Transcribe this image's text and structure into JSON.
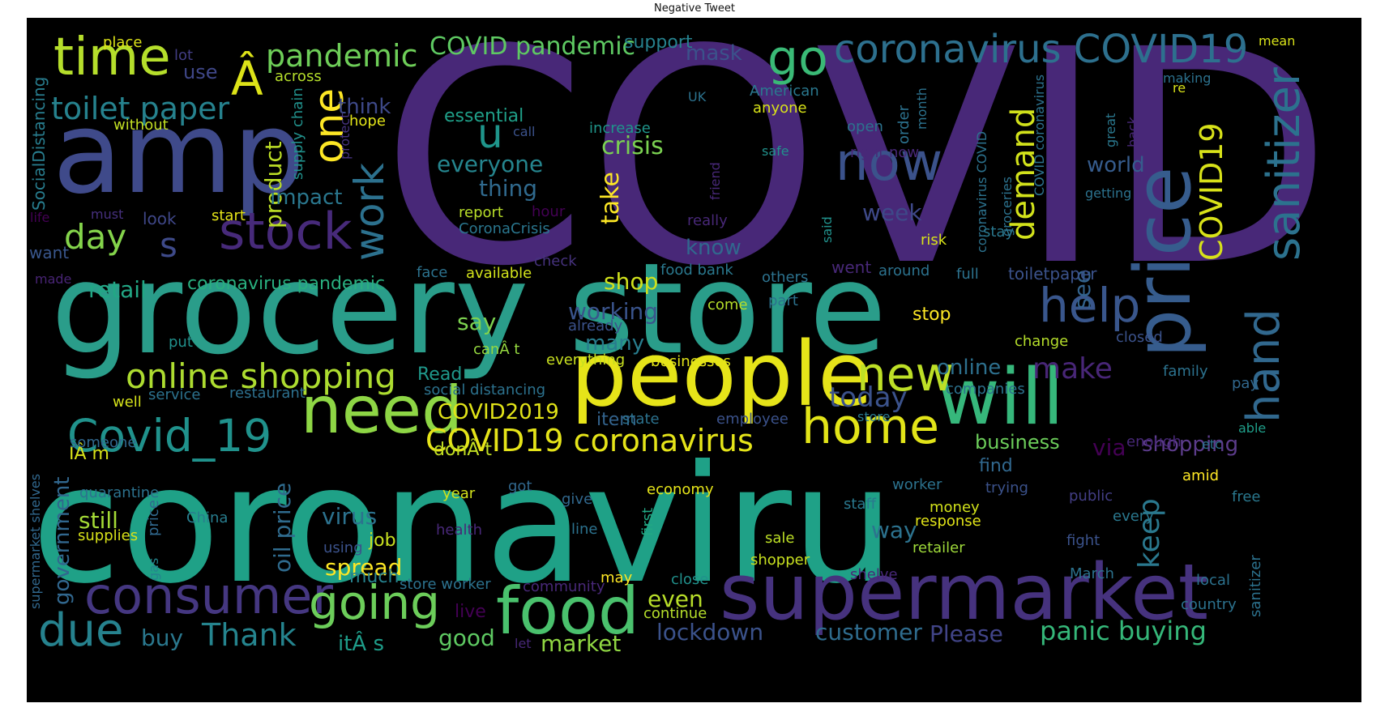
{
  "title": "Negative Tweet",
  "words": [
    {
      "text": "COVID",
      "color": "#482878"
    },
    {
      "text": "coronaviru",
      "color": "#1fa187"
    },
    {
      "text": "grocery store",
      "color": "#2a9d8a"
    },
    {
      "text": "amp",
      "color": "#3f4a8a"
    },
    {
      "text": "people",
      "color": "#e6e419"
    },
    {
      "text": "will",
      "color": "#36b77b"
    },
    {
      "text": "supermarket",
      "color": "#46327e"
    },
    {
      "text": "price",
      "color": "#365c8d"
    },
    {
      "text": "food",
      "color": "#4ac16d"
    },
    {
      "text": "need",
      "color": "#8ed645"
    },
    {
      "text": "home",
      "color": "#e2e418"
    },
    {
      "text": "consumer",
      "color": "#453781"
    },
    {
      "text": "going",
      "color": "#6ccd5a"
    },
    {
      "text": "Covid_19",
      "color": "#20928c"
    },
    {
      "text": "time",
      "color": "#b5de2b"
    },
    {
      "text": "now",
      "color": "#3b528b"
    },
    {
      "text": "stock",
      "color": "#472a7a"
    },
    {
      "text": "sanitizer",
      "color": "#2c728e"
    },
    {
      "text": "hand",
      "color": "#31688e"
    },
    {
      "text": "help",
      "color": "#39568c"
    },
    {
      "text": "new",
      "color": "#bddf26"
    },
    {
      "text": "due",
      "color": "#26828e"
    },
    {
      "text": "go",
      "color": "#3aba76"
    },
    {
      "text": "coronavirus COVID19",
      "color": "#2d708e"
    },
    {
      "text": "online shopping",
      "color": "#addc30"
    },
    {
      "text": "COVID19 coronavirus",
      "color": "#e5e419"
    },
    {
      "text": "work",
      "color": "#2c718e"
    },
    {
      "text": "u",
      "color": "#1f958b"
    },
    {
      "text": "one",
      "color": "#fde725"
    },
    {
      "text": "Â",
      "color": "#dde318"
    },
    {
      "text": "pandemic",
      "color": "#6ece58"
    },
    {
      "text": "toilet paper",
      "color": "#26828e"
    },
    {
      "text": "day",
      "color": "#84d44b"
    },
    {
      "text": "s",
      "color": "#3e4a89"
    },
    {
      "text": "today",
      "color": "#3b528b"
    },
    {
      "text": "demand",
      "color": "#d2e21b"
    },
    {
      "text": "COVID19",
      "color": "#d8e219"
    },
    {
      "text": "make",
      "color": "#482677"
    },
    {
      "text": "keep",
      "color": "#2a788e"
    },
    {
      "text": "Thank",
      "color": "#25848e"
    },
    {
      "text": "Please",
      "color": "#414487"
    },
    {
      "text": "lockdown",
      "color": "#3b528b"
    },
    {
      "text": "panic buying",
      "color": "#35b779"
    },
    {
      "text": "customer",
      "color": "#2f6c8e"
    },
    {
      "text": "COVID pandemic",
      "color": "#5ec962"
    },
    {
      "text": "crisis",
      "color": "#7ad151"
    },
    {
      "text": "everyone",
      "color": "#25858e"
    },
    {
      "text": "thing",
      "color": "#306a8e"
    },
    {
      "text": "take",
      "color": "#fde725"
    },
    {
      "text": "shop",
      "color": "#d0e11c"
    },
    {
      "text": "working",
      "color": "#3a548c"
    },
    {
      "text": "product",
      "color": "#bddf26"
    },
    {
      "text": "impact",
      "color": "#2a778e"
    },
    {
      "text": "retail",
      "color": "#22a785"
    },
    {
      "text": "coronavirus pandemic",
      "color": "#29af7f"
    },
    {
      "text": "say",
      "color": "#7cd250"
    },
    {
      "text": "many",
      "color": "#287d8e"
    },
    {
      "text": "still",
      "color": "#a5db36"
    },
    {
      "text": "virus",
      "color": "#2c728e"
    },
    {
      "text": "buy",
      "color": "#2a788e"
    },
    {
      "text": "good",
      "color": "#5ec962"
    },
    {
      "text": "market",
      "color": "#90d743"
    },
    {
      "text": "spread",
      "color": "#fde725"
    },
    {
      "text": "oil price",
      "color": "#2f6b8e"
    },
    {
      "text": "government",
      "color": "#31678e"
    },
    {
      "text": "COVID2019",
      "color": "#e2e418"
    },
    {
      "text": "business",
      "color": "#6ccd5a"
    },
    {
      "text": "via",
      "color": "#440154"
    },
    {
      "text": "shopping",
      "color": "#5c3c8b"
    },
    {
      "text": "way",
      "color": "#2c728e"
    },
    {
      "text": "even",
      "color": "#b8de29"
    },
    {
      "text": "world",
      "color": "#365c8d"
    },
    {
      "text": "week",
      "color": "#3e4989"
    },
    {
      "text": "know",
      "color": "#31688e"
    },
    {
      "text": "think",
      "color": "#3e4989"
    },
    {
      "text": "mask",
      "color": "#3b528b"
    },
    {
      "text": "use",
      "color": "#3f4788"
    },
    {
      "text": "support",
      "color": "#26828e"
    },
    {
      "text": "essential",
      "color": "#1f9f88"
    },
    {
      "text": "online",
      "color": "#2d708e"
    },
    {
      "text": "see",
      "color": "#33638d"
    },
    {
      "text": "itÂ s",
      "color": "#1e9c89"
    },
    {
      "text": "donÂ t",
      "color": "#c2df23"
    },
    {
      "text": "IÂ m",
      "color": "#d8e219"
    },
    {
      "text": "live",
      "color": "#440154"
    },
    {
      "text": "item",
      "color": "#33638d"
    },
    {
      "text": "much",
      "color": "#26828e"
    },
    {
      "text": "job",
      "color": "#c8e020"
    },
    {
      "text": "find",
      "color": "#31688e"
    },
    {
      "text": "stop",
      "color": "#fde725"
    },
    {
      "text": "may",
      "color": "#fde725"
    },
    {
      "text": "Read",
      "color": "#1f988b"
    },
    {
      "text": "place",
      "color": "#dde318"
    },
    {
      "text": "lot",
      "color": "#433e85"
    },
    {
      "text": "across",
      "color": "#b5de2b"
    },
    {
      "text": "without",
      "color": "#c2df23"
    },
    {
      "text": "hope",
      "color": "#e2e418"
    },
    {
      "text": "SocialDistancing",
      "color": "#287d8e"
    },
    {
      "text": "supply chain",
      "color": "#21918c"
    },
    {
      "text": "protect",
      "color": "#46327e"
    },
    {
      "text": "call",
      "color": "#3b528b"
    },
    {
      "text": "increase",
      "color": "#1f968b"
    },
    {
      "text": "report",
      "color": "#b8de29"
    },
    {
      "text": "hour",
      "color": "#440154"
    },
    {
      "text": "CoronaCrisis",
      "color": "#2a768e"
    },
    {
      "text": "life",
      "color": "#440154"
    },
    {
      "text": "must",
      "color": "#46307e"
    },
    {
      "text": "look",
      "color": "#3f4788"
    },
    {
      "text": "start",
      "color": "#e5e419"
    },
    {
      "text": "want",
      "color": "#39568c"
    },
    {
      "text": "made",
      "color": "#482475"
    },
    {
      "text": "face",
      "color": "#2c728e"
    },
    {
      "text": "available",
      "color": "#d2e21b"
    },
    {
      "text": "check",
      "color": "#46327e"
    },
    {
      "text": "food bank",
      "color": "#2a788e"
    },
    {
      "text": "others",
      "color": "#2c728e"
    },
    {
      "text": "part",
      "color": "#2c728e"
    },
    {
      "text": "come",
      "color": "#b5de2b"
    },
    {
      "text": "already",
      "color": "#3b528b"
    },
    {
      "text": "put",
      "color": "#21918c"
    },
    {
      "text": "canÂ t",
      "color": "#95d840"
    },
    {
      "text": "everything",
      "color": "#c8e020"
    },
    {
      "text": "businesses",
      "color": "#e2e418"
    },
    {
      "text": "well",
      "color": "#d5e21a"
    },
    {
      "text": "service",
      "color": "#2c728e"
    },
    {
      "text": "restaurant",
      "color": "#2d708e"
    },
    {
      "text": "social distancing",
      "color": "#2c728e"
    },
    {
      "text": "state",
      "color": "#2c728e"
    },
    {
      "text": "employee",
      "color": "#3b528b"
    },
    {
      "text": "someone",
      "color": "#31688e"
    },
    {
      "text": "supermarket shelves",
      "color": "#31688e"
    },
    {
      "text": "quarantine",
      "color": "#2c728e"
    },
    {
      "text": "price",
      "color": "#31688e"
    },
    {
      "text": "gas",
      "color": "#25848e"
    },
    {
      "text": "China",
      "color": "#287d8e"
    },
    {
      "text": "supplies",
      "color": "#d8e219"
    },
    {
      "text": "year",
      "color": "#d2e21b"
    },
    {
      "text": "got",
      "color": "#31688e"
    },
    {
      "text": "give",
      "color": "#31688e"
    },
    {
      "text": "economy",
      "color": "#e5e419"
    },
    {
      "text": "first",
      "color": "#22a884"
    },
    {
      "text": "line",
      "color": "#2c728e"
    },
    {
      "text": "health",
      "color": "#482878"
    },
    {
      "text": "using",
      "color": "#3b528b"
    },
    {
      "text": "store worker",
      "color": "#2c728e"
    },
    {
      "text": "community",
      "color": "#482878"
    },
    {
      "text": "continue",
      "color": "#b5de2b"
    },
    {
      "text": "close",
      "color": "#21918c"
    },
    {
      "text": "let",
      "color": "#482878"
    },
    {
      "text": "sale",
      "color": "#bddf26"
    },
    {
      "text": "shopper",
      "color": "#c8e020"
    },
    {
      "text": "shelve",
      "color": "#482878"
    },
    {
      "text": "retailer",
      "color": "#9fda3a"
    },
    {
      "text": "money",
      "color": "#d2e21b"
    },
    {
      "text": "response",
      "color": "#e2e418"
    },
    {
      "text": "staff",
      "color": "#2a788e"
    },
    {
      "text": "worker",
      "color": "#2c728e"
    },
    {
      "text": "trying",
      "color": "#3b528b"
    },
    {
      "text": "public",
      "color": "#433e85"
    },
    {
      "text": "every",
      "color": "#2a788e"
    },
    {
      "text": "fight",
      "color": "#3b528b"
    },
    {
      "text": "March",
      "color": "#2c728e"
    },
    {
      "text": "local",
      "color": "#2c728e"
    },
    {
      "text": "country",
      "color": "#2c728e"
    },
    {
      "text": "amid",
      "color": "#fde725"
    },
    {
      "text": "free",
      "color": "#2a788e"
    },
    {
      "text": "etc",
      "color": "#2c728e"
    },
    {
      "text": "able",
      "color": "#1f9e89"
    },
    {
      "text": "enough",
      "color": "#482878"
    },
    {
      "text": "companies",
      "color": "#2c728e"
    },
    {
      "text": "store",
      "color": "#2a788e"
    },
    {
      "text": "pay",
      "color": "#31688e"
    },
    {
      "text": "family",
      "color": "#2c728e"
    },
    {
      "text": "closed",
      "color": "#3b528b"
    },
    {
      "text": "change",
      "color": "#b5de2b"
    },
    {
      "text": "went",
      "color": "#482878"
    },
    {
      "text": "around",
      "color": "#2c728e"
    },
    {
      "text": "full",
      "color": "#2c728e"
    },
    {
      "text": "toiletpaper",
      "color": "#3b528b"
    },
    {
      "text": "risk",
      "color": "#d8e219"
    },
    {
      "text": "said",
      "color": "#21918c"
    },
    {
      "text": "stay",
      "color": "#2a788e"
    },
    {
      "text": "really",
      "color": "#482878"
    },
    {
      "text": "friend",
      "color": "#482878"
    },
    {
      "text": "safe",
      "color": "#21918c"
    },
    {
      "text": "right now",
      "color": "#482878"
    },
    {
      "text": "open",
      "color": "#2c728e"
    },
    {
      "text": "order",
      "color": "#2c728e"
    },
    {
      "text": "month",
      "color": "#2c728e"
    },
    {
      "text": "anyone",
      "color": "#d8e219"
    },
    {
      "text": "American",
      "color": "#2a788e"
    },
    {
      "text": "UK",
      "color": "#2c728e"
    },
    {
      "text": "coronavirus COVID",
      "color": "#2c728e"
    },
    {
      "text": "groceries",
      "color": "#2c728e"
    },
    {
      "text": "COVID coronavirus",
      "color": "#2c728e"
    },
    {
      "text": "great",
      "color": "#2a788e"
    },
    {
      "text": "back",
      "color": "#482878"
    },
    {
      "text": "getting",
      "color": "#2c728e"
    },
    {
      "text": "making",
      "color": "#2c728e"
    },
    {
      "text": "re",
      "color": "#d8e219"
    },
    {
      "text": "mean",
      "color": "#d8e219"
    },
    {
      "text": "sanitizer",
      "color": "#2c728e"
    }
  ]
}
